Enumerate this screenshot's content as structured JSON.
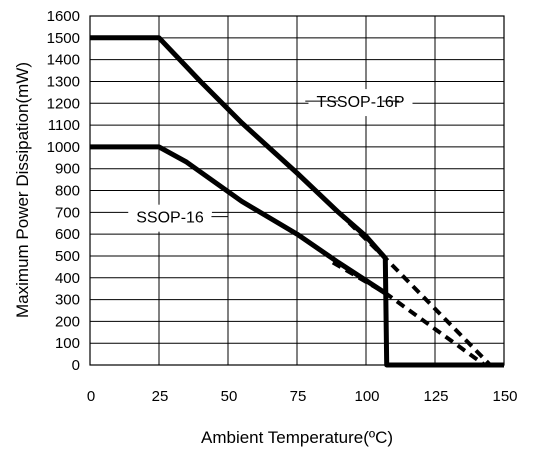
{
  "chart_data": {
    "type": "line",
    "xlabel": "Ambient Temperature(ºC)",
    "ylabel": "Maximum Power Dissipation(mW)",
    "xlim": [
      0,
      150
    ],
    "ylim": [
      0,
      1600
    ],
    "xticks": [
      0,
      25,
      50,
      75,
      100,
      125,
      150
    ],
    "yticks": [
      0,
      100,
      200,
      300,
      400,
      500,
      600,
      700,
      800,
      900,
      1000,
      1100,
      1200,
      1300,
      1400,
      1500,
      1600
    ],
    "grid": true,
    "series": [
      {
        "name": "TSSOP-16P",
        "style": "solid",
        "points": [
          [
            0,
            1500
          ],
          [
            25,
            1500
          ],
          [
            40,
            1300
          ],
          [
            55,
            1110
          ],
          [
            75,
            880
          ],
          [
            90,
            700
          ],
          [
            100,
            590
          ],
          [
            107,
            490
          ],
          [
            107.5,
            0
          ],
          [
            150,
            0
          ]
        ]
      },
      {
        "name": "TSSOP-16P",
        "style": "dashed",
        "points": [
          [
            90,
            700
          ],
          [
            107,
            490
          ],
          [
            145,
            0
          ]
        ]
      },
      {
        "name": "SSOP-16",
        "style": "solid",
        "points": [
          [
            0,
            1000
          ],
          [
            25,
            1000
          ],
          [
            35,
            930
          ],
          [
            55,
            750
          ],
          [
            75,
            600
          ],
          [
            90,
            470
          ],
          [
            107,
            330
          ]
        ]
      },
      {
        "name": "SSOP-16",
        "style": "dashed",
        "points": [
          [
            88,
            470
          ],
          [
            107,
            330
          ],
          [
            143,
            0
          ]
        ]
      }
    ],
    "annotations": [
      {
        "text": "TSSOP-16P",
        "x": 98,
        "y": 1210,
        "leader_x": [
          78,
          90,
          106,
          112
        ]
      },
      {
        "text": "SSOP-16",
        "x": 29,
        "y": 680,
        "leader_x": [
          44,
          50
        ]
      }
    ],
    "colors": {
      "line": "#000000",
      "grid": "#000000",
      "background": "#ffffff"
    }
  }
}
